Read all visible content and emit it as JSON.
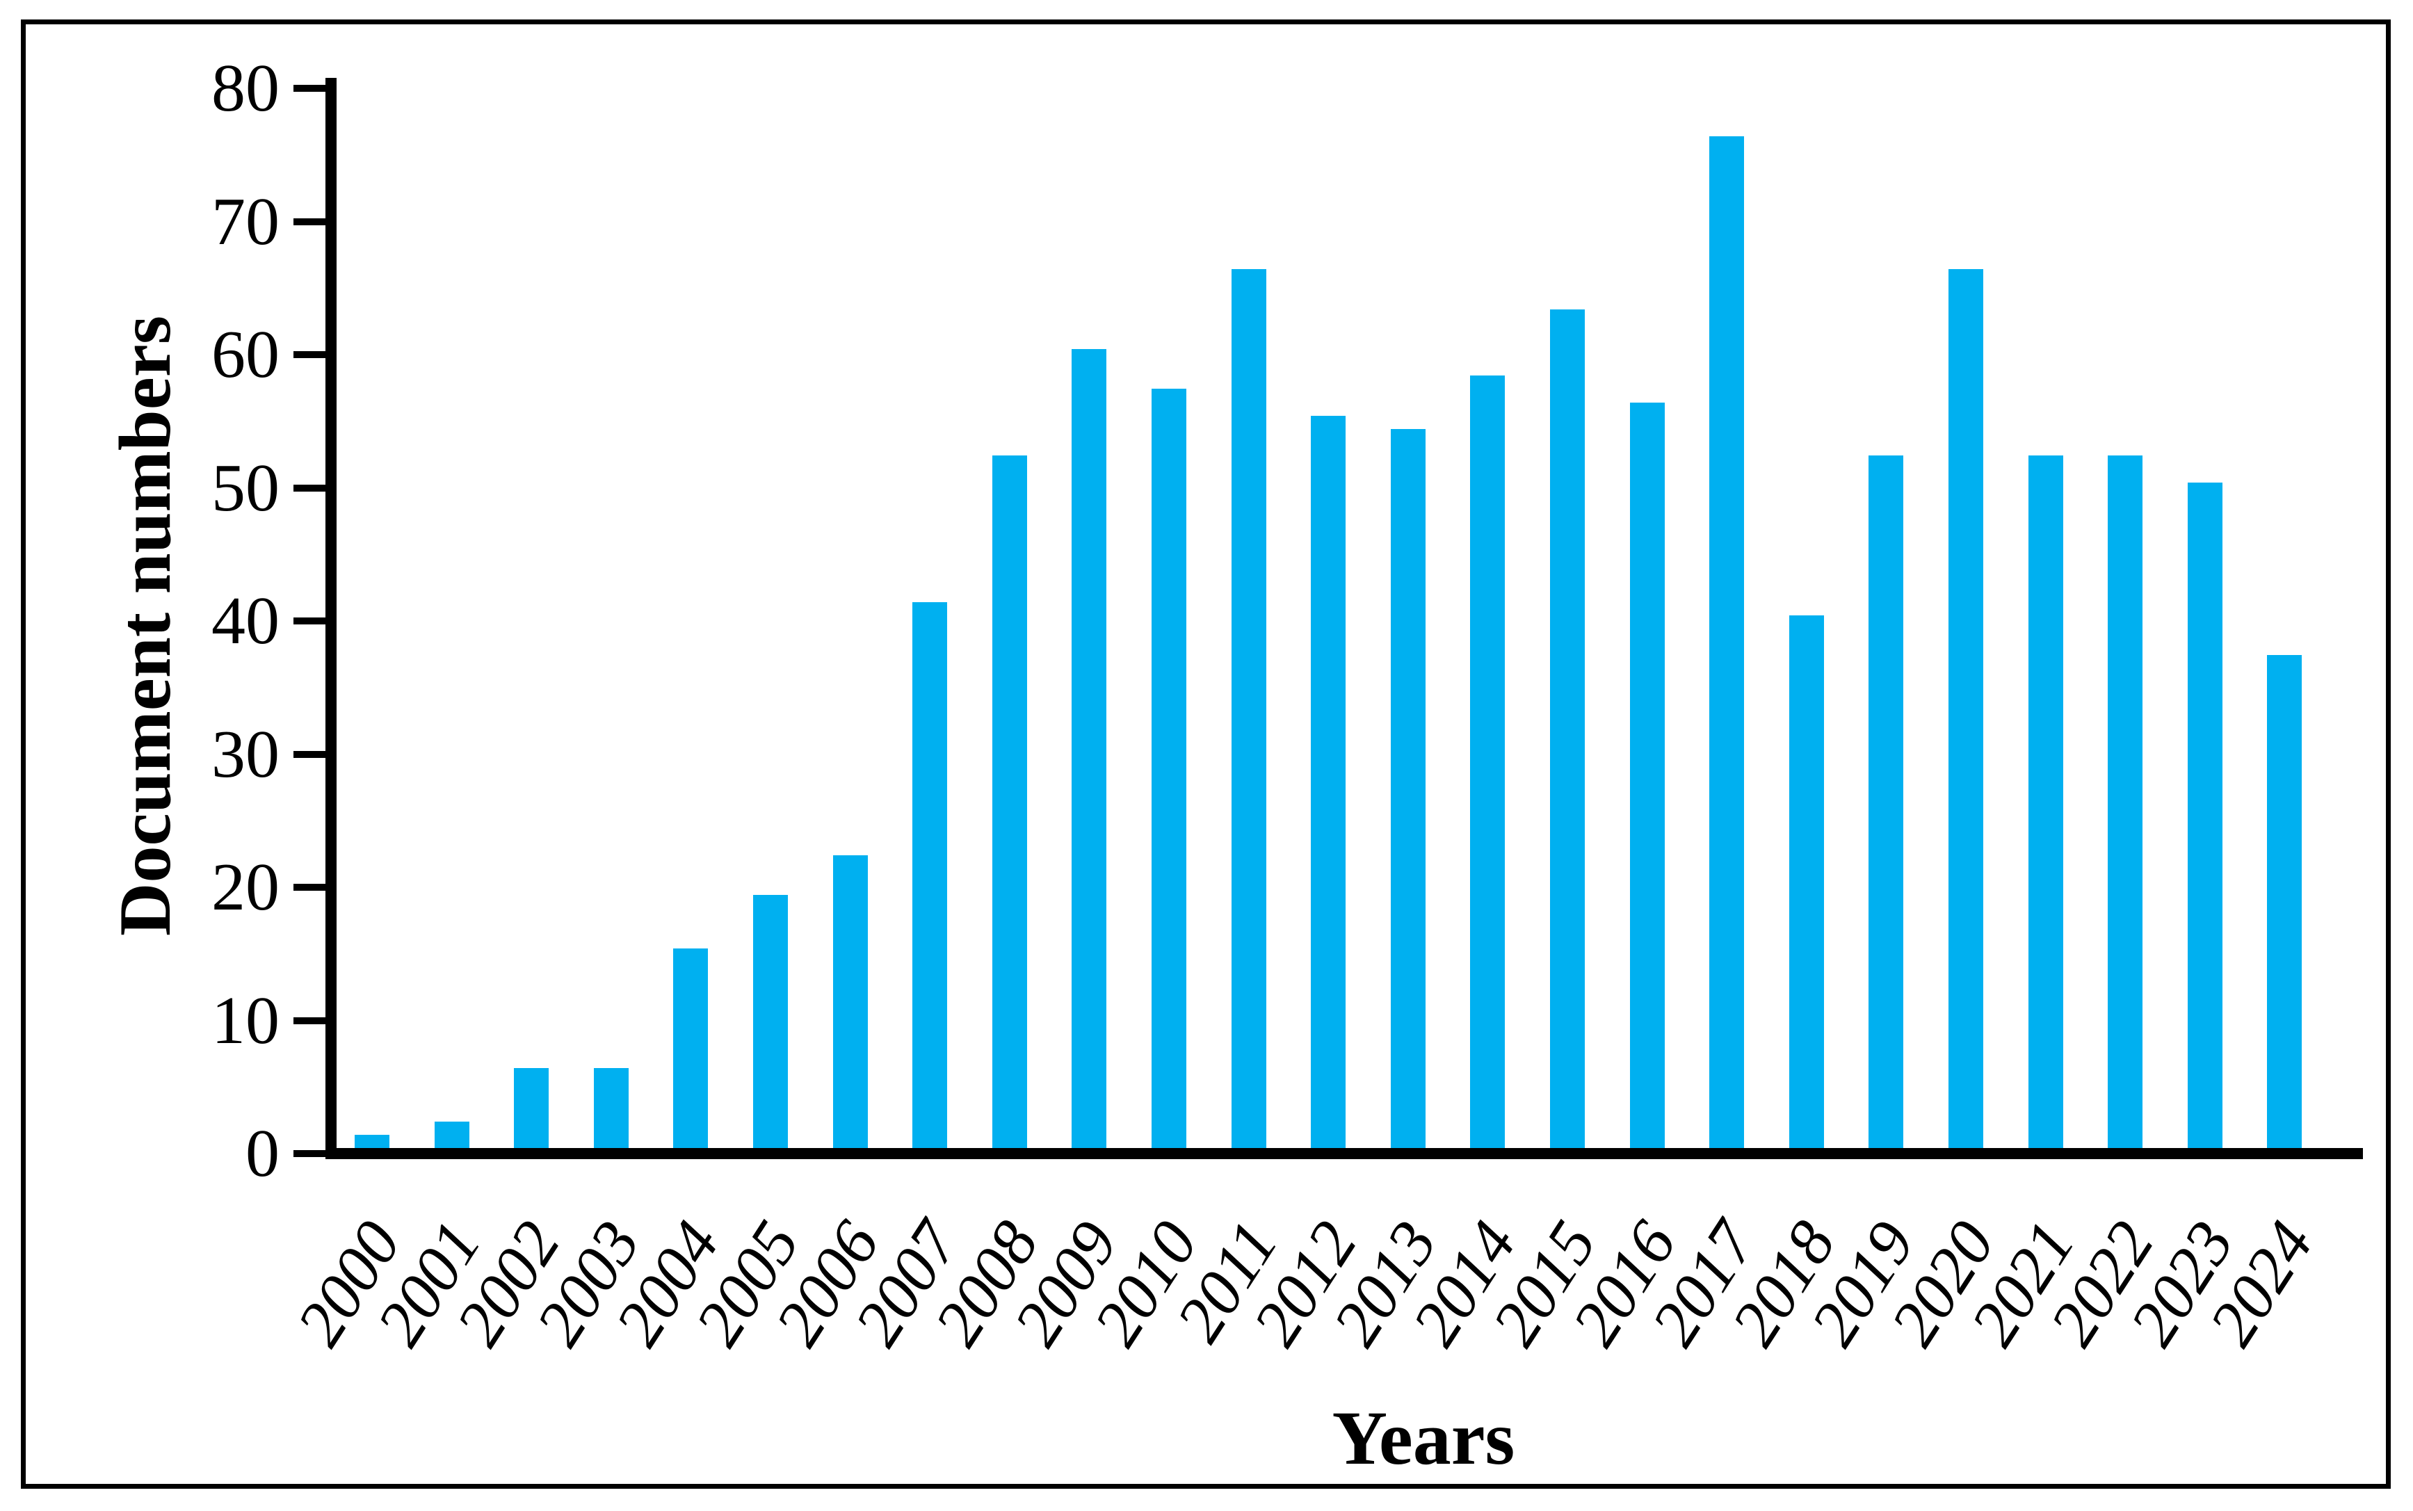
{
  "figure": {
    "background_color": "#ffffff",
    "border_color": "#000000",
    "axis_color": "#000000"
  },
  "chart_data": {
    "type": "bar",
    "title": "",
    "xlabel": "Years",
    "ylabel": "Document numbers",
    "categories": [
      "2000",
      "2001",
      "2002",
      "2003",
      "2004",
      "2005",
      "2006",
      "2007",
      "2008",
      "2009",
      "2010",
      "2011",
      "2012",
      "2013",
      "2014",
      "2015",
      "2016",
      "2017",
      "2018",
      "2019",
      "2020",
      "2021",
      "2022",
      "2023",
      "2024"
    ],
    "values": [
      1,
      2,
      6,
      6,
      15,
      19,
      22,
      41,
      52,
      60,
      57,
      66,
      55,
      54,
      58,
      63,
      56,
      76,
      40,
      52,
      66,
      52,
      52,
      50,
      37
    ],
    "bar_color": "#00B0F0",
    "ylim": [
      0,
      80
    ],
    "yticks": [
      0,
      10,
      20,
      30,
      40,
      50,
      60,
      70,
      80
    ],
    "grid": false,
    "legend": null,
    "x_tick_style": "italic, rotated",
    "y_tick_style": "regular"
  }
}
